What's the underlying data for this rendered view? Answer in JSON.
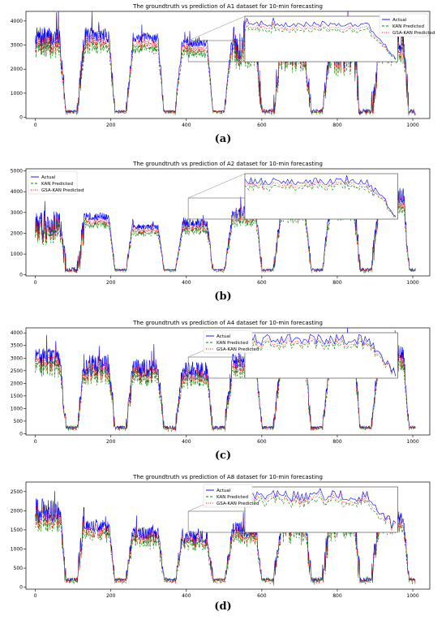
{
  "chart_data": [
    {
      "type": "line",
      "title": "The groundtruth vs prediction of A1 dataset for 10-min forecasting",
      "xlabel": "",
      "ylabel": "",
      "xlim": [
        -25,
        1045
      ],
      "ylim": [
        -50,
        4400
      ],
      "xticks": [
        0,
        200,
        400,
        600,
        800,
        1000
      ],
      "yticks": [
        0,
        1000,
        2000,
        3000,
        4000
      ],
      "legend": "top-right",
      "grid": false,
      "series": [
        {
          "name": "Actual",
          "color": "#0000ff",
          "style": "solid"
        },
        {
          "name": "KAN Predicted",
          "color": "#008000",
          "style": "dashed"
        },
        {
          "name": "GSA-KAN Predicted",
          "color": "#ff0000",
          "style": "dotted"
        }
      ],
      "day_peaks": [
        4300,
        4100,
        3800,
        3500,
        4200,
        3900,
        4600,
        4400
      ],
      "day_levels": [
        3300,
        3400,
        3300,
        3100,
        2900,
        2700,
        2800,
        3100
      ],
      "trough": 250,
      "caption": "(a)"
    },
    {
      "type": "line",
      "title": "The groundtruth vs prediction of A2 dataset for 10-min forecasting",
      "xlabel": "",
      "ylabel": "",
      "xlim": [
        -25,
        1045
      ],
      "ylim": [
        -50,
        5100
      ],
      "xticks": [
        0,
        200,
        400,
        600,
        800,
        1000
      ],
      "yticks": [
        0,
        1000,
        2000,
        3000,
        4000,
        5000
      ],
      "legend": "top-left",
      "grid": false,
      "series": [
        {
          "name": "Actual",
          "color": "#0000ff",
          "style": "solid"
        },
        {
          "name": "KAN Predicted",
          "color": "#008000",
          "style": "dashed"
        },
        {
          "name": "GSA-KAN Predicted",
          "color": "#ff0000",
          "style": "dotted"
        }
      ],
      "day_peaks": [
        4000,
        3200,
        2600,
        3000,
        3700,
        3900,
        4900,
        4800
      ],
      "day_levels": [
        2400,
        2800,
        2300,
        2500,
        3000,
        3200,
        3600,
        3800
      ],
      "trough": 250,
      "caption": "(b)"
    },
    {
      "type": "line",
      "title": "The groundtruth vs prediction of A4 dataset for 10-min forecasting",
      "xlabel": "",
      "ylabel": "",
      "xlim": [
        -25,
        1045
      ],
      "ylim": [
        -50,
        4200
      ],
      "xticks": [
        0,
        200,
        400,
        600,
        800,
        1000
      ],
      "yticks": [
        0,
        500,
        1000,
        1500,
        2000,
        2500,
        3000,
        3500,
        4000
      ],
      "legend": "top-center",
      "grid": false,
      "series": [
        {
          "name": "Actual",
          "color": "#0000ff",
          "style": "solid"
        },
        {
          "name": "KAN Predicted",
          "color": "#008000",
          "style": "dashed"
        },
        {
          "name": "GSA-KAN Predicted",
          "color": "#ff0000",
          "style": "dotted"
        }
      ],
      "day_peaks": [
        3900,
        3700,
        3400,
        3300,
        3600,
        3700,
        4100,
        3900
      ],
      "day_levels": [
        3000,
        2700,
        2600,
        2500,
        2900,
        3000,
        3300,
        3200
      ],
      "trough": 250,
      "caption": "(c)"
    },
    {
      "type": "line",
      "title": "The groundtruth vs prediction of A8 dataset for 10-min forecasting",
      "xlabel": "",
      "ylabel": "",
      "xlim": [
        -25,
        1045
      ],
      "ylim": [
        -50,
        2750
      ],
      "xticks": [
        0,
        200,
        400,
        600,
        800,
        1000
      ],
      "yticks": [
        0,
        500,
        1000,
        1500,
        2000,
        2500
      ],
      "legend": "top-center",
      "grid": false,
      "series": [
        {
          "name": "Actual",
          "color": "#0000ff",
          "style": "solid"
        },
        {
          "name": "KAN Predicted",
          "color": "#008000",
          "style": "dashed"
        },
        {
          "name": "GSA-KAN Predicted",
          "color": "#ff0000",
          "style": "dotted"
        }
      ],
      "day_peaks": [
        2700,
        2000,
        1800,
        1700,
        2000,
        2500,
        2600,
        2200
      ],
      "day_levels": [
        2000,
        1600,
        1400,
        1300,
        1500,
        1700,
        1800,
        1800
      ],
      "trough": 200,
      "caption": "(d)"
    }
  ]
}
